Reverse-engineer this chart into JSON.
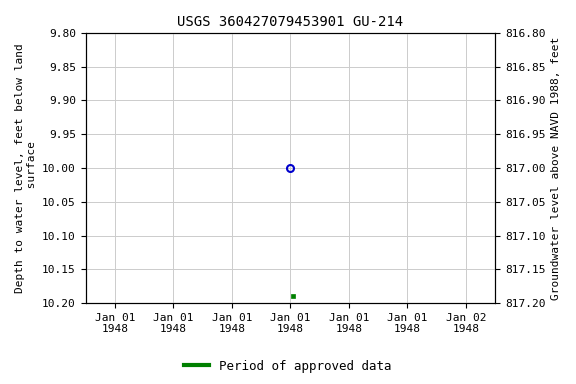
{
  "title": "USGS 360427079453901 GU-214",
  "left_ylabel": "Depth to water level, feet below land\n surface",
  "right_ylabel": "Groundwater level above NAVD 1988, feet",
  "ylim_left": [
    9.8,
    10.2
  ],
  "ylim_right": [
    816.8,
    817.2
  ],
  "yticks_left": [
    9.8,
    9.85,
    9.9,
    9.95,
    10.0,
    10.05,
    10.1,
    10.15,
    10.2
  ],
  "yticks_right": [
    816.8,
    816.85,
    816.9,
    816.95,
    817.0,
    817.05,
    817.1,
    817.15,
    817.2
  ],
  "point_open_value": 10.0,
  "point_solid_value": 10.19,
  "open_marker_color": "#0000cc",
  "solid_marker_color": "#008000",
  "legend_label": "Period of approved data",
  "legend_color": "#008000",
  "bg_color": "#ffffff",
  "grid_color": "#cccccc",
  "title_fontsize": 10,
  "axis_label_fontsize": 8,
  "tick_fontsize": 8,
  "legend_fontsize": 9
}
